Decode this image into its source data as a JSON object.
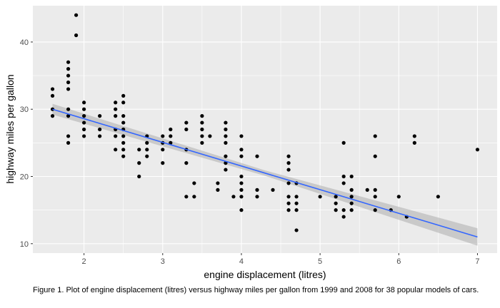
{
  "chart_data": {
    "type": "scatter",
    "title": "",
    "xlabel": "engine displacement (litres)",
    "ylabel": "highway miles per gallon",
    "xlim": [
      1.35,
      7.25
    ],
    "ylim": [
      8.6,
      45.4
    ],
    "x_ticks": [
      2,
      3,
      4,
      5,
      6,
      7
    ],
    "y_ticks": [
      10,
      20,
      30,
      40
    ],
    "grid": true,
    "colors": {
      "panel": "#ebebeb",
      "grid": "#ffffff",
      "point": "#000000",
      "fit_line": "#3366ff",
      "ribbon": "#b3b3b3"
    },
    "points": [
      [
        1.6,
        33
      ],
      [
        1.6,
        32
      ],
      [
        1.6,
        30
      ],
      [
        1.6,
        29
      ],
      [
        1.8,
        37
      ],
      [
        1.8,
        36
      ],
      [
        1.8,
        35
      ],
      [
        1.8,
        34
      ],
      [
        1.8,
        33
      ],
      [
        1.8,
        30
      ],
      [
        1.8,
        29
      ],
      [
        1.8,
        26
      ],
      [
        1.8,
        25
      ],
      [
        1.9,
        44
      ],
      [
        1.9,
        41
      ],
      [
        2.0,
        31
      ],
      [
        2.0,
        30
      ],
      [
        2.0,
        29
      ],
      [
        2.0,
        28
      ],
      [
        2.0,
        27
      ],
      [
        2.0,
        26
      ],
      [
        2.2,
        29
      ],
      [
        2.2,
        27
      ],
      [
        2.2,
        26
      ],
      [
        2.4,
        31
      ],
      [
        2.4,
        30
      ],
      [
        2.4,
        29
      ],
      [
        2.4,
        27
      ],
      [
        2.4,
        26
      ],
      [
        2.4,
        24
      ],
      [
        2.5,
        32
      ],
      [
        2.5,
        31
      ],
      [
        2.5,
        29
      ],
      [
        2.5,
        28
      ],
      [
        2.5,
        27
      ],
      [
        2.5,
        26
      ],
      [
        2.5,
        25
      ],
      [
        2.5,
        24
      ],
      [
        2.5,
        23
      ],
      [
        2.7,
        24
      ],
      [
        2.7,
        22
      ],
      [
        2.7,
        20
      ],
      [
        2.8,
        26
      ],
      [
        2.8,
        25
      ],
      [
        2.8,
        24
      ],
      [
        2.8,
        23
      ],
      [
        3.0,
        26
      ],
      [
        3.0,
        25
      ],
      [
        3.0,
        24
      ],
      [
        3.0,
        22
      ],
      [
        3.1,
        27
      ],
      [
        3.1,
        26
      ],
      [
        3.1,
        25
      ],
      [
        3.3,
        28
      ],
      [
        3.3,
        27
      ],
      [
        3.3,
        24
      ],
      [
        3.3,
        22
      ],
      [
        3.3,
        17
      ],
      [
        3.4,
        19
      ],
      [
        3.4,
        17
      ],
      [
        3.5,
        29
      ],
      [
        3.5,
        28
      ],
      [
        3.5,
        27
      ],
      [
        3.5,
        26
      ],
      [
        3.5,
        25
      ],
      [
        3.6,
        26
      ],
      [
        3.7,
        19
      ],
      [
        3.7,
        18
      ],
      [
        3.8,
        28
      ],
      [
        3.8,
        27
      ],
      [
        3.8,
        26
      ],
      [
        3.8,
        25
      ],
      [
        3.8,
        23
      ],
      [
        3.8,
        22
      ],
      [
        3.8,
        21
      ],
      [
        3.9,
        17
      ],
      [
        4.0,
        26
      ],
      [
        4.0,
        24
      ],
      [
        4.0,
        23
      ],
      [
        4.0,
        20
      ],
      [
        4.0,
        19
      ],
      [
        4.0,
        18
      ],
      [
        4.0,
        17
      ],
      [
        4.0,
        15
      ],
      [
        4.2,
        23
      ],
      [
        4.2,
        18
      ],
      [
        4.2,
        17
      ],
      [
        4.4,
        18
      ],
      [
        4.6,
        23
      ],
      [
        4.6,
        22
      ],
      [
        4.6,
        21
      ],
      [
        4.6,
        19
      ],
      [
        4.6,
        17
      ],
      [
        4.6,
        16
      ],
      [
        4.6,
        15
      ],
      [
        4.7,
        19
      ],
      [
        4.7,
        17
      ],
      [
        4.7,
        16
      ],
      [
        4.7,
        15
      ],
      [
        4.7,
        12
      ],
      [
        5.0,
        17
      ],
      [
        5.2,
        17
      ],
      [
        5.2,
        16
      ],
      [
        5.2,
        15
      ],
      [
        5.3,
        25
      ],
      [
        5.3,
        20
      ],
      [
        5.3,
        19
      ],
      [
        5.3,
        15
      ],
      [
        5.3,
        14
      ],
      [
        5.4,
        20
      ],
      [
        5.4,
        18
      ],
      [
        5.4,
        17
      ],
      [
        5.4,
        16
      ],
      [
        5.4,
        15
      ],
      [
        5.6,
        18
      ],
      [
        5.7,
        26
      ],
      [
        5.7,
        23
      ],
      [
        5.7,
        18
      ],
      [
        5.7,
        17
      ],
      [
        5.7,
        15
      ],
      [
        5.9,
        15
      ],
      [
        6.0,
        17
      ],
      [
        6.1,
        14
      ],
      [
        6.2,
        26
      ],
      [
        6.2,
        25
      ],
      [
        6.5,
        17
      ],
      [
        7.0,
        24
      ]
    ],
    "fit_line": {
      "x": [
        1.6,
        7.0
      ],
      "y": [
        30.0,
        11.0
      ]
    },
    "ribbon": {
      "x": [
        1.6,
        4.3,
        7.0
      ],
      "upper": [
        30.8,
        20.9,
        12.3
      ],
      "lower": [
        29.2,
        20.1,
        9.7
      ]
    }
  },
  "caption": "Figure 1. Plot of engine displacement (litres) versus highway miles per gallon from 1999 and 2008 for 38 popular models of cars."
}
